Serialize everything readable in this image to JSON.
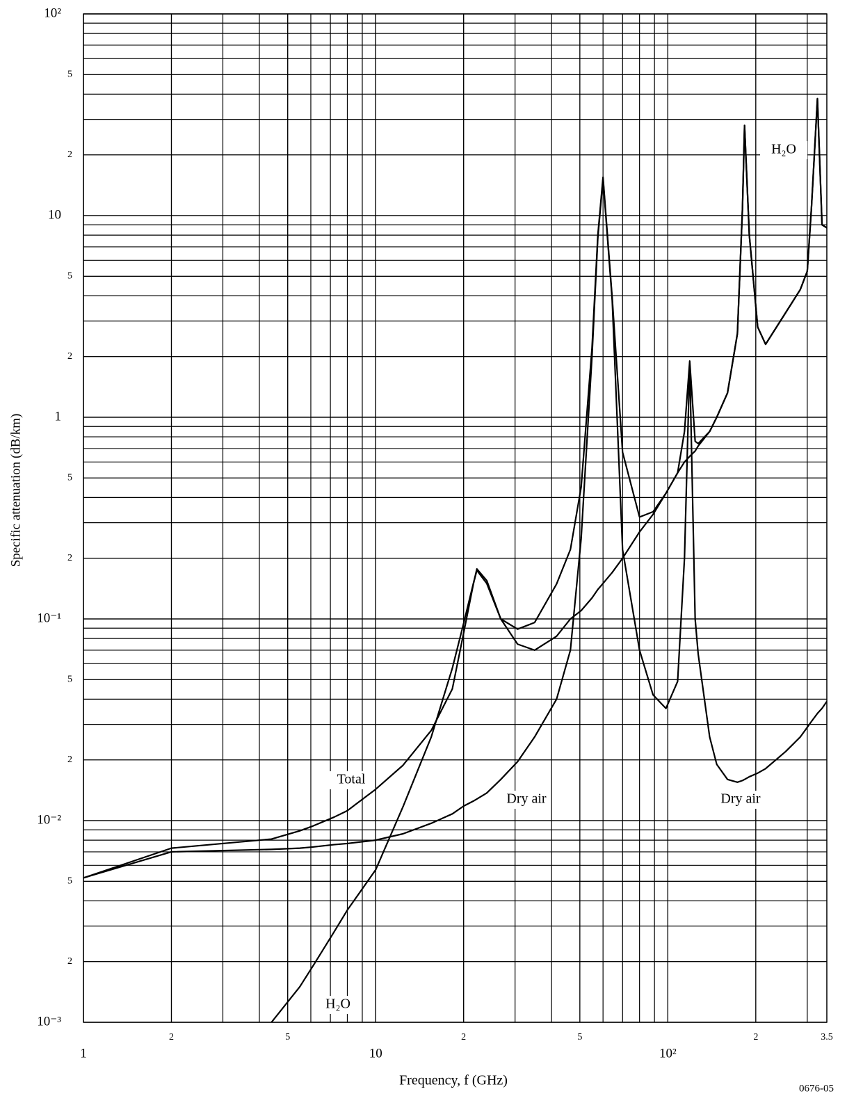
{
  "chart_data": {
    "type": "line",
    "x_label": "Frequency, f (GHz)",
    "y_label": "Specific attenuation (dB/km)",
    "figure_code": "0676-05",
    "log_x": true,
    "log_y": true,
    "grid": true,
    "minor_grid": true,
    "color": "#000000",
    "xlim": [
      1,
      350
    ],
    "ylim": [
      0.001,
      100
    ],
    "xticks": [
      1,
      2,
      5,
      10,
      {
        "value": 20,
        "label": "2"
      },
      {
        "value": 50,
        "label": "5"
      },
      {
        "value": 100,
        "label": "10²"
      },
      {
        "value": 200,
        "label": "2"
      },
      {
        "value": 350,
        "label": "3.5"
      }
    ],
    "yticks": [
      {
        "value": 0.001,
        "label": "10⁻³"
      },
      {
        "value": 0.002,
        "label": "2"
      },
      {
        "value": 0.005,
        "label": "5"
      },
      {
        "value": 0.01,
        "label": "10⁻²"
      },
      {
        "value": 0.02,
        "label": "2"
      },
      {
        "value": 0.05,
        "label": "5"
      },
      {
        "value": 0.1,
        "label": "10⁻¹"
      },
      {
        "value": 0.2,
        "label": "2"
      },
      {
        "value": 0.5,
        "label": "5"
      },
      1,
      2,
      5,
      10,
      {
        "value": 20,
        "label": "2"
      },
      {
        "value": 50,
        "label": "5"
      },
      {
        "value": 100,
        "label": "10²"
      }
    ],
    "x": [
      1,
      2,
      4.4,
      5.5,
      6.1,
      7.2,
      8,
      10,
      12.4,
      15.5,
      18.3,
      20,
      21.6,
      22.2,
      24,
      26.8,
      30.6,
      35,
      41.6,
      46.4,
      50.5,
      55,
      57.6,
      60,
      64.5,
      70,
      80,
      89,
      98.5,
      108,
      114,
      118.8,
      124,
      127,
      139,
      147,
      160,
      173,
      180,
      183,
      190,
      203,
      216,
      253,
      284,
      300,
      310,
      325,
      337,
      350
    ],
    "series": [
      {
        "name": "Total",
        "color": "#000000",
        "values": [
          0.0052,
          0.0073,
          0.0081,
          0.0089,
          0.0094,
          0.0104,
          0.0112,
          0.0143,
          0.0188,
          0.028,
          0.045,
          0.085,
          0.149,
          0.177,
          0.155,
          0.1,
          0.089,
          0.096,
          0.149,
          0.221,
          0.45,
          2.2,
          8,
          15.5,
          3.9,
          0.67,
          0.32,
          0.34,
          0.42,
          0.53,
          0.85,
          1.9,
          0.76,
          0.74,
          0.85,
          1.0,
          1.32,
          2.6,
          10.8,
          28,
          8,
          2.8,
          2.3,
          3.3,
          4.3,
          5.3,
          10.9,
          38,
          9,
          8.7
        ]
      },
      {
        "name": "Dry air",
        "color": "#000000",
        "values": [
          0.0052,
          0.007,
          0.0072,
          0.0073,
          0.0074,
          0.0076,
          0.0077,
          0.008,
          0.0086,
          0.0097,
          0.0108,
          0.0118,
          0.0125,
          0.0128,
          0.0137,
          0.016,
          0.0196,
          0.026,
          0.04,
          0.07,
          0.25,
          2.0,
          7.8,
          15.2,
          3.8,
          0.22,
          0.07,
          0.042,
          0.036,
          0.049,
          0.2,
          1.85,
          0.1,
          0.067,
          0.026,
          0.019,
          0.016,
          0.0155,
          0.0158,
          0.016,
          0.0165,
          0.0172,
          0.0181,
          0.022,
          0.026,
          0.029,
          0.031,
          0.034,
          0.036,
          0.039
        ]
      },
      {
        "name": "H₂O",
        "color": "#000000",
        "values": [
          null,
          null,
          0.001,
          0.0015,
          0.0019,
          0.0028,
          0.0036,
          0.0057,
          0.0117,
          0.026,
          0.057,
          0.095,
          0.15,
          0.174,
          0.15,
          0.1,
          0.075,
          0.07,
          0.082,
          0.1,
          0.11,
          0.127,
          0.14,
          0.15,
          0.17,
          0.2,
          0.27,
          0.33,
          0.42,
          0.53,
          0.6,
          0.64,
          0.68,
          0.72,
          0.85,
          1.0,
          1.32,
          2.6,
          10.8,
          28,
          8,
          2.8,
          2.3,
          3.3,
          4.3,
          5.3,
          10.9,
          38,
          9,
          8.7
        ]
      }
    ]
  }
}
